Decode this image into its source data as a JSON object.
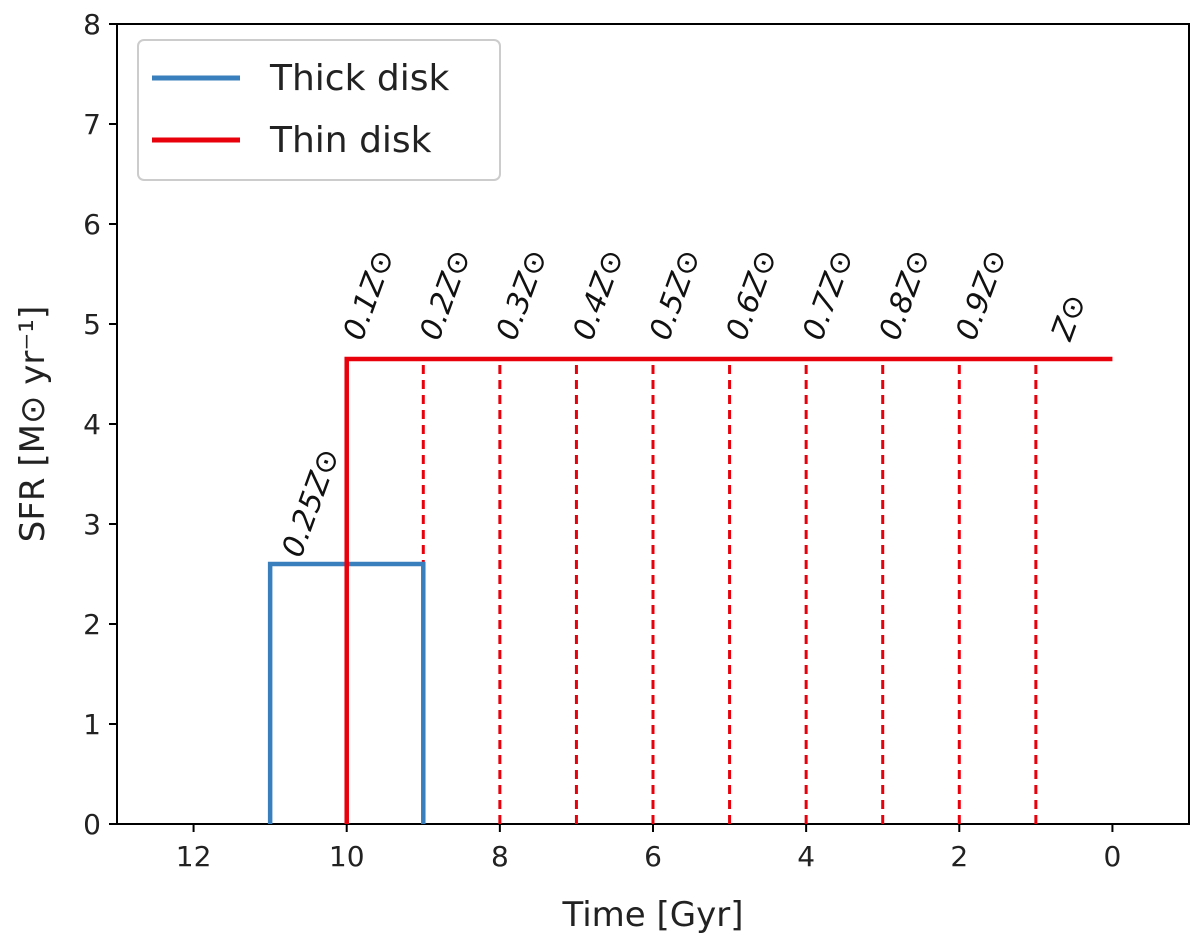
{
  "chart_data": {
    "type": "line",
    "xlabel": "Time [Gyr]",
    "ylabel": "SFR [M⊙ yr⁻¹]",
    "xlim": [
      13,
      -1
    ],
    "ylim": [
      0,
      8
    ],
    "x_ticks": [
      12,
      10,
      8,
      6,
      4,
      2,
      0
    ],
    "y_ticks": [
      0,
      1,
      2,
      3,
      4,
      5,
      6,
      7,
      8
    ],
    "x_tick_labels": [
      "12",
      "10",
      "8",
      "6",
      "4",
      "2",
      "0"
    ],
    "y_tick_labels": [
      "0",
      "1",
      "2",
      "3",
      "4",
      "5",
      "6",
      "7",
      "8"
    ],
    "grid": false,
    "legend_position": "top-left",
    "series": [
      {
        "name": "Thick disk",
        "color": "#3a7fbd",
        "points": [
          [
            11,
            0
          ],
          [
            11,
            2.6
          ],
          [
            9,
            2.6
          ],
          [
            9,
            0
          ]
        ]
      },
      {
        "name": "Thin disk",
        "color": "#e8000b",
        "points": [
          [
            10,
            0
          ],
          [
            10,
            4.65
          ],
          [
            0,
            4.65
          ]
        ]
      }
    ],
    "dashed_lines": {
      "color": "#e8000b",
      "x": [
        9,
        8,
        7,
        6,
        5,
        4,
        3,
        2,
        1
      ],
      "y_top": 4.65
    },
    "annotations": [
      {
        "text": "0.25Z⊙",
        "x": 10.6,
        "y": 2.65
      },
      {
        "text": "0.1Z⊙",
        "x": 9.8,
        "y": 4.82
      },
      {
        "text": "0.2Z⊙",
        "x": 8.8,
        "y": 4.82
      },
      {
        "text": "0.3Z⊙",
        "x": 7.8,
        "y": 4.82
      },
      {
        "text": "0.4Z⊙",
        "x": 6.8,
        "y": 4.82
      },
      {
        "text": "0.5Z⊙",
        "x": 5.8,
        "y": 4.82
      },
      {
        "text": "0.6Z⊙",
        "x": 4.8,
        "y": 4.82
      },
      {
        "text": "0.7Z⊙",
        "x": 3.8,
        "y": 4.82
      },
      {
        "text": "0.8Z⊙",
        "x": 2.8,
        "y": 4.82
      },
      {
        "text": "0.9Z⊙",
        "x": 1.8,
        "y": 4.82
      },
      {
        "text": "Z⊙",
        "x": 0.55,
        "y": 4.82
      }
    ]
  }
}
